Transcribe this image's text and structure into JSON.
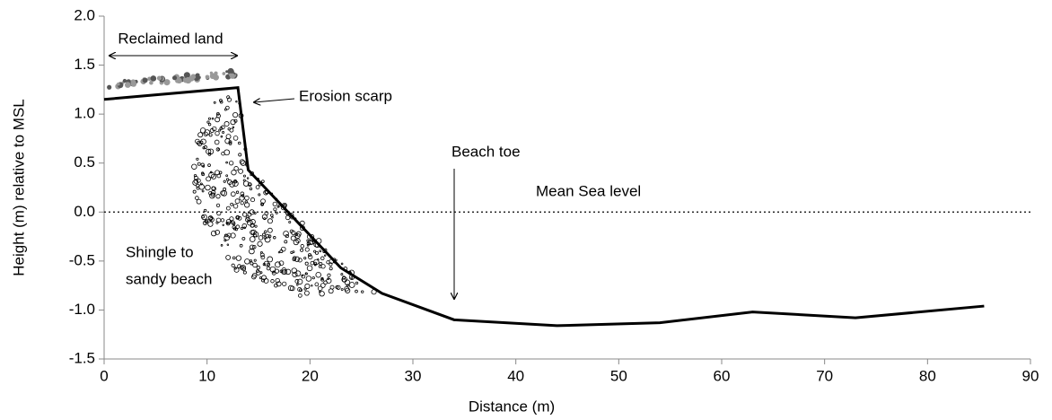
{
  "chart_data": {
    "type": "line",
    "x_label": "Distance (m)",
    "y_label": "Height (m) relative to MSL",
    "x": [
      0,
      13,
      14,
      23,
      27,
      34,
      44,
      54,
      63,
      73,
      85.5
    ],
    "series": [
      {
        "color": "#000000",
        "values": [
          1.15,
          1.27,
          0.43,
          -0.57,
          -0.83,
          -1.1,
          -1.16,
          -1.13,
          -1.02,
          -1.08,
          -0.96
        ]
      }
    ],
    "mean_sea_level": 0,
    "annotations": {
      "reclaimed": "Reclaimed land",
      "scarp": "Erosion scarp",
      "toe": "Beach toe",
      "msl": "Mean Sea level",
      "beach": [
        "Shingle to",
        "sandy beach"
      ]
    },
    "xlim": [
      0,
      90
    ],
    "xticks": [
      0,
      10,
      20,
      30,
      40,
      50,
      60,
      70,
      80,
      90
    ],
    "ylim": [
      -1.5,
      2.0
    ],
    "yticks": [
      {
        "value": -1.5,
        "label": "-1.5"
      },
      {
        "value": -1.0,
        "label": "-1.0"
      },
      {
        "value": -0.5,
        "label": "-0.5"
      },
      {
        "value": 0,
        "label": "0.0"
      },
      {
        "value": 0.5,
        "label": "0.5"
      },
      {
        "value": 1.0,
        "label": "1.0"
      },
      {
        "value": 1.5,
        "label": "1.5"
      },
      {
        "value": 2.0,
        "label": "2.0"
      }
    ],
    "grid": false
  }
}
